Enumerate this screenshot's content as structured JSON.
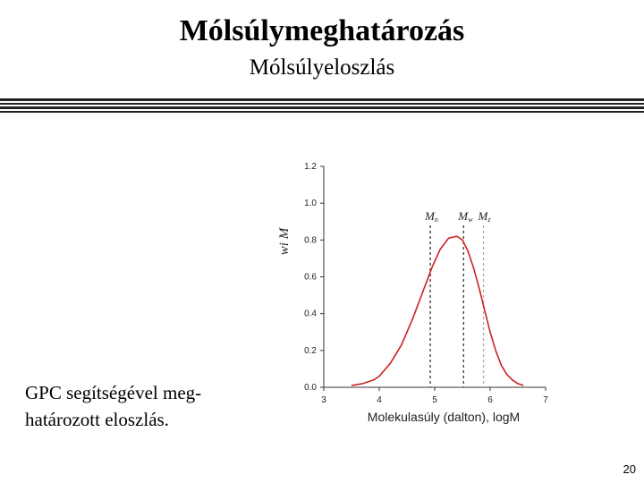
{
  "slide": {
    "title": "Mólsúlymeghatározás",
    "subtitle": "Mólsúlyeloszlás",
    "caption_line1": "GPC segítségével meg-",
    "caption_line2": "határozott eloszlás.",
    "page_number": "20"
  },
  "chart_data": {
    "type": "line",
    "xlabel": "Molekulasúly (dalton), logM",
    "ylabel": "wi M",
    "x_ticks": [
      "3",
      "4",
      "5",
      "6",
      "7"
    ],
    "y_ticks": [
      "0.0",
      "0.2",
      "0.4",
      "0.6",
      "0.8",
      "1.0",
      "1.2"
    ],
    "xlim": [
      3,
      7
    ],
    "ylim": [
      0,
      1.2
    ],
    "series": [
      {
        "color": "#cc2222",
        "x": [
          3.5,
          3.7,
          3.9,
          4.0,
          4.2,
          4.4,
          4.6,
          4.8,
          4.95,
          5.1,
          5.25,
          5.4,
          5.5,
          5.6,
          5.7,
          5.8,
          5.9,
          6.0,
          6.1,
          6.2,
          6.3,
          6.4,
          6.5,
          6.6
        ],
        "y": [
          0.01,
          0.02,
          0.04,
          0.06,
          0.13,
          0.23,
          0.37,
          0.53,
          0.65,
          0.75,
          0.81,
          0.82,
          0.8,
          0.74,
          0.65,
          0.54,
          0.42,
          0.3,
          0.2,
          0.12,
          0.07,
          0.04,
          0.02,
          0.01
        ]
      }
    ],
    "markers": [
      {
        "label": "Mn",
        "sub": "n",
        "x": 4.92,
        "color": "#333333"
      },
      {
        "label": "Mw",
        "sub": "w",
        "x": 5.52,
        "color": "#333333"
      },
      {
        "label": "Mz",
        "sub": "z",
        "x": 5.88,
        "color": "#aaaaaa"
      }
    ]
  }
}
